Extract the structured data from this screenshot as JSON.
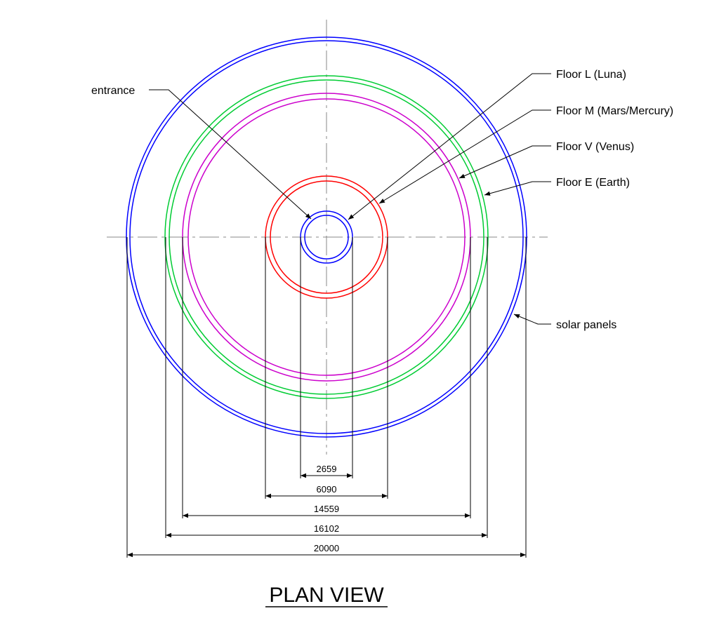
{
  "title": "PLAN VIEW",
  "colors": {
    "entrance": "#0000ff",
    "luna": "#ff0000",
    "mars_mercury": "#cc00cc",
    "venus": "#00cc33",
    "solar_panels": "#0000ff",
    "lines": "#000000",
    "centerline": "#888888"
  },
  "labels": {
    "entrance": "entrance",
    "floor_l": "Floor L (Luna)",
    "floor_m": "Floor M (Mars/Mercury)",
    "floor_v": "Floor V (Venus)",
    "floor_e": "Floor E (Earth)",
    "solar_panels": "solar panels"
  },
  "dimensions": {
    "d1": "2659",
    "d2": "6090",
    "d3": "14559",
    "d4": "16102",
    "d5": "20000"
  }
}
